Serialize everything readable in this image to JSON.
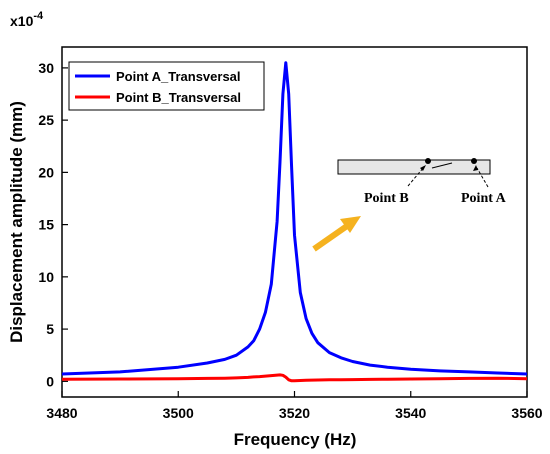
{
  "chart_data": {
    "type": "line",
    "x": [
      3480,
      3490,
      3500,
      3505,
      3508,
      3510,
      3512,
      3513,
      3514,
      3515,
      3516,
      3517,
      3517.5,
      3518,
      3518.5,
      3519,
      3519.5,
      3520,
      3521,
      3522,
      3523,
      3524,
      3526,
      3528,
      3530,
      3533,
      3536,
      3540,
      3545,
      3550,
      3555,
      3560
    ],
    "series": [
      {
        "name": "Point A_Transversal",
        "color": "#0000ff",
        "values": [
          0.7,
          0.9,
          1.35,
          1.75,
          2.1,
          2.5,
          3.3,
          3.9,
          5.0,
          6.6,
          9.3,
          15.3,
          21.0,
          27.5,
          30.5,
          27.5,
          20.5,
          14.0,
          8.5,
          6.0,
          4.6,
          3.7,
          2.75,
          2.25,
          1.9,
          1.55,
          1.35,
          1.15,
          1.0,
          0.9,
          0.8,
          0.7
        ]
      },
      {
        "name": "Point B_Transversal",
        "color": "#ff0000",
        "values": [
          0.2,
          0.22,
          0.25,
          0.28,
          0.3,
          0.33,
          0.38,
          0.42,
          0.45,
          0.5,
          0.55,
          0.6,
          0.62,
          0.58,
          0.4,
          0.15,
          0.05,
          0.05,
          0.08,
          0.1,
          0.12,
          0.13,
          0.15,
          0.16,
          0.17,
          0.18,
          0.2,
          0.22,
          0.25,
          0.28,
          0.3,
          0.25
        ]
      }
    ],
    "xlabel": "Frequency (Hz)",
    "ylabel": "Displacement amplitude (mm)",
    "y_scale_label": "x10",
    "y_scale_exponent": "-4",
    "xlim": [
      3480,
      3560
    ],
    "ylim": [
      -1.5,
      32
    ],
    "x_ticks": [
      3480,
      3500,
      3520,
      3540,
      3560
    ],
    "y_ticks": [
      0,
      5,
      10,
      15,
      20,
      25,
      30
    ],
    "legend": {
      "position": "top-left"
    },
    "grid": false,
    "inset": {
      "label_b": "Point B",
      "label_a": "Point A",
      "arrow_color": "#f5b21f"
    }
  }
}
